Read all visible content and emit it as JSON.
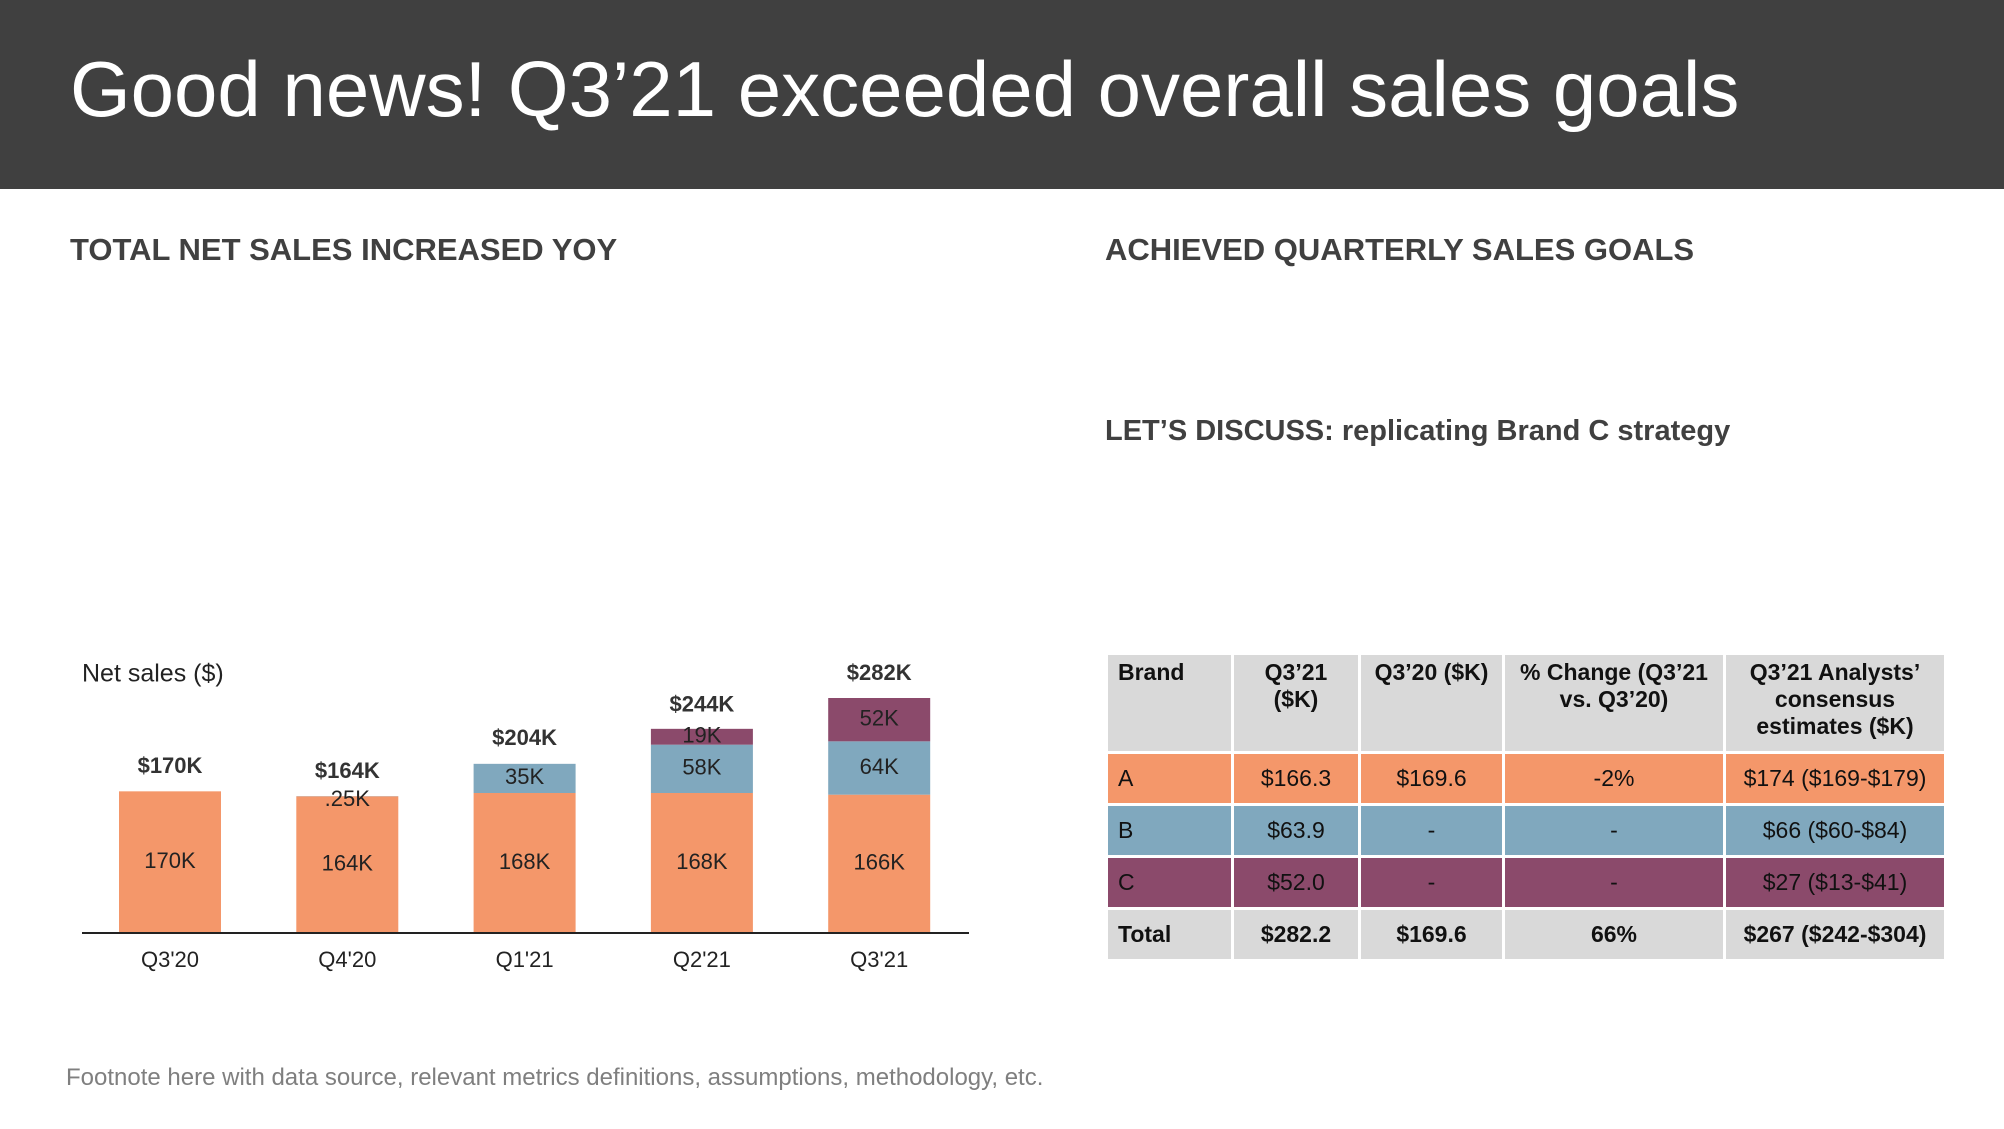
{
  "title": "Good news! Q3’21 exceeded overall sales goals",
  "chart_heading": "TOTAL NET SALES INCREASED YOY",
  "table_heading": "ACHIEVED QUARTERLY SALES GOALS",
  "discussion": "LET’S DISCUSS: replicating Brand C strategy",
  "chart_data": {
    "type": "bar",
    "stacked": true,
    "y_label": "Net sales ($)",
    "categories": [
      "Q3'20",
      "Q4'20",
      "Q1'21",
      "Q2'21",
      "Q3'21"
    ],
    "series": [
      {
        "color": "#f4976a",
        "values": [
          170000,
          164000,
          168000,
          168000,
          166000
        ],
        "value_labels": [
          "170K",
          "164K",
          "168K",
          "168K",
          "166K"
        ]
      },
      {
        "color": "#80a8be",
        "values": [
          null,
          250,
          35000,
          58000,
          64000
        ],
        "value_labels": [
          null,
          ".25K",
          "35K",
          "58K",
          "64K"
        ]
      },
      {
        "color": "#8b4a6b",
        "values": [
          null,
          null,
          null,
          19000,
          52000
        ],
        "value_labels": [
          null,
          null,
          null,
          "19K",
          "52K"
        ]
      }
    ],
    "totals": [
      170000,
      164000,
      204000,
      244000,
      282000
    ],
    "total_labels": [
      "$170K",
      "$164K",
      "$204K",
      "$244K",
      "$282K"
    ]
  },
  "table": {
    "columns": [
      "Brand",
      "Q3’21 ($K)",
      "Q3’20 ($K)",
      "% Change (Q3’21 vs. Q3’20)",
      "Q3’21 Analysts’ consensus estimates ($K)"
    ],
    "rows": [
      [
        "A",
        "$166.3",
        "$169.6",
        "-2%",
        "$174 ($169-$179)"
      ],
      [
        "B",
        "$63.9",
        "-",
        "-",
        "$66 ($60-$84)"
      ],
      [
        "C",
        "$52.0",
        "-",
        "-",
        "$27 ($13-$41)"
      ],
      [
        "Total",
        "$282.2",
        "$169.6",
        "66%",
        "$267 ($242-$304)"
      ]
    ]
  },
  "footnote": "Footnote here with data source, relevant metrics definitions, assumptions, methodology, etc."
}
